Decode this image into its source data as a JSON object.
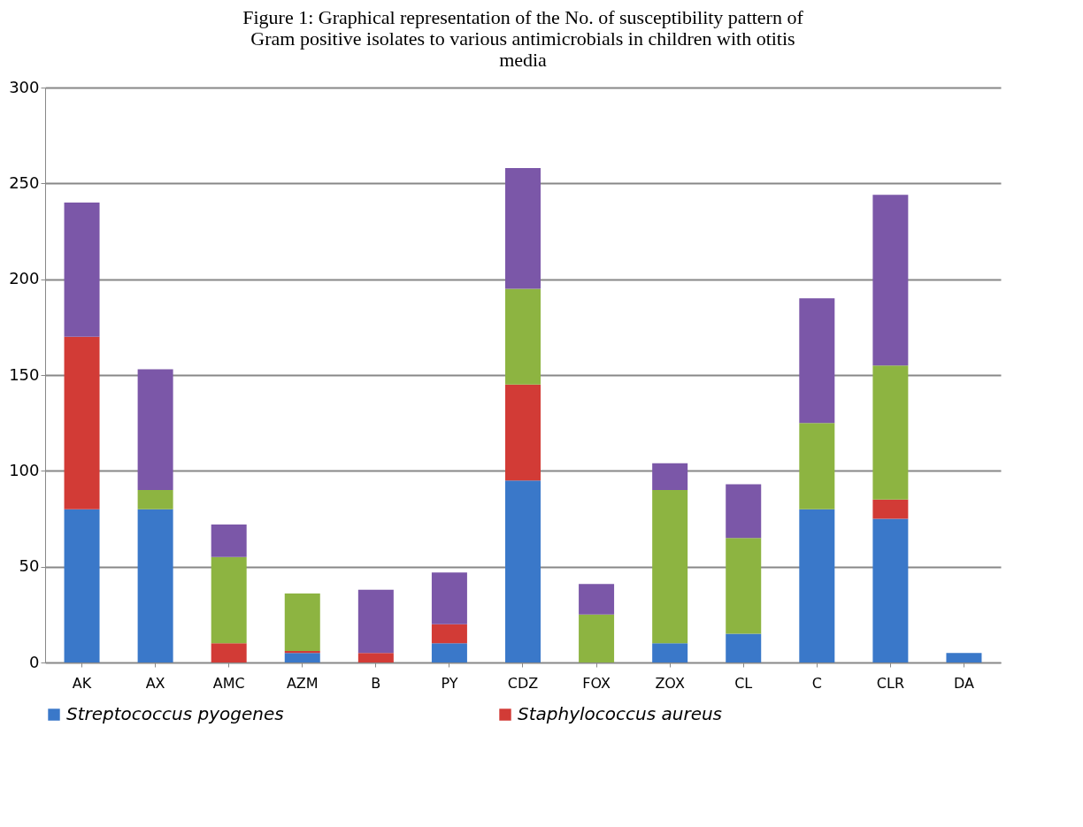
{
  "chart_data": {
    "type": "bar",
    "title": "Figure 1: Graphical representation of the No. of susceptibility pattern of Gram positive isolates to various antimicrobials in children with otitis media",
    "categories": [
      "AK",
      "AX",
      "AMC",
      "AZM",
      "B",
      "PY",
      "CDZ",
      "FOX",
      "ZOX",
      "CL",
      "C",
      "CLR",
      "DA"
    ],
    "stacked": true,
    "series": [
      {
        "name": "Streptococcus pyogenes",
        "color": "#3a78c9",
        "values": [
          80,
          80,
          0,
          5,
          0,
          10,
          95,
          0,
          10,
          15,
          80,
          75,
          5
        ]
      },
      {
        "name": "Staphylococcus aureus",
        "color": "#d23b36",
        "values": [
          90,
          0,
          10,
          1,
          5,
          10,
          50,
          0,
          0,
          0,
          0,
          10,
          0
        ]
      },
      {
        "color": "#8db441",
        "values": [
          0,
          10,
          45,
          30,
          0,
          0,
          50,
          25,
          80,
          50,
          45,
          70,
          0
        ]
      },
      {
        "color": "#7b57a8",
        "values": [
          70,
          63,
          17,
          0,
          33,
          27,
          63,
          16,
          14,
          28,
          65,
          89,
          0
        ]
      }
    ],
    "ylim": [
      0,
      300
    ],
    "yticks": [
      0,
      50,
      100,
      150,
      200,
      250,
      300
    ],
    "grid": true,
    "legend": "bottom"
  }
}
